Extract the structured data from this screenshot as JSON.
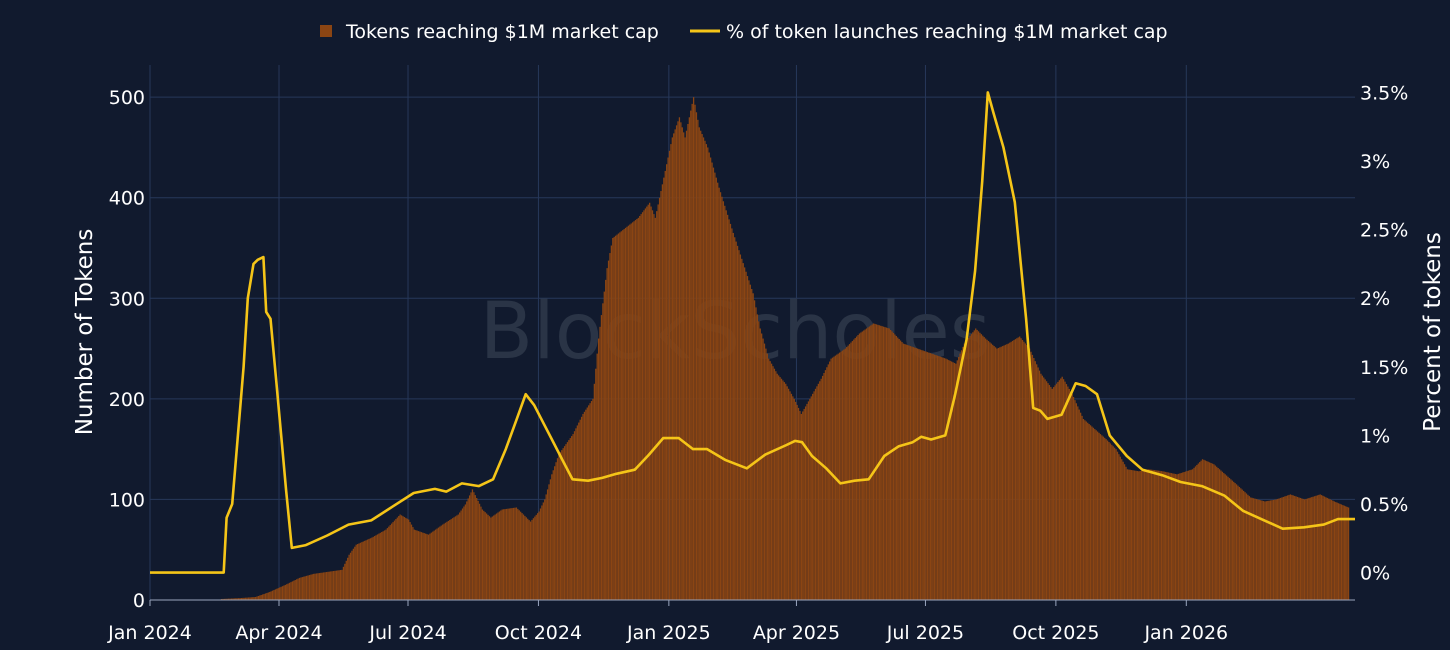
{
  "watermark": "BlockScholes",
  "chart_data": {
    "type": "bar+line",
    "legend_position": "top-center",
    "grid": true,
    "x_range": [
      "2024-01-01",
      "2026-04-30"
    ],
    "x_ticks": [
      {
        "date": "2024-01-01",
        "label": "Jan 2024"
      },
      {
        "date": "2024-04-01",
        "label": "Apr 2024"
      },
      {
        "date": "2024-07-01",
        "label": "Jul 2024"
      },
      {
        "date": "2024-10-01",
        "label": "Oct 2024"
      },
      {
        "date": "2025-01-01",
        "label": "Jan 2025"
      },
      {
        "date": "2025-04-01",
        "label": "Apr 2025"
      },
      {
        "date": "2025-07-01",
        "label": "Jul 2025"
      },
      {
        "date": "2025-10-01",
        "label": "Oct 2025"
      },
      {
        "date": "2026-01-01",
        "label": "Jan 2026"
      }
    ],
    "y_left": {
      "label": "Number of Tokens",
      "range": [
        0,
        532
      ],
      "ticks": [
        {
          "v": 0,
          "label": "0"
        },
        {
          "v": 100,
          "label": "100"
        },
        {
          "v": 200,
          "label": "200"
        },
        {
          "v": 300,
          "label": "300"
        },
        {
          "v": 400,
          "label": "400"
        },
        {
          "v": 500,
          "label": "500"
        }
      ]
    },
    "y_right": {
      "label": "Percent of tokens",
      "range": [
        -0.2,
        3.7
      ],
      "ticks": [
        {
          "v": 0,
          "label": "0%"
        },
        {
          "v": 0.5,
          "label": "0.5%"
        },
        {
          "v": 1,
          "label": "1%"
        },
        {
          "v": 1.5,
          "label": "1.5%"
        },
        {
          "v": 2,
          "label": "2%"
        },
        {
          "v": 2.5,
          "label": "2.5%"
        },
        {
          "v": 3,
          "label": "3%"
        },
        {
          "v": 3.5,
          "label": "3.5%"
        }
      ]
    },
    "series": [
      {
        "name": "Tokens reaching $1M market cap",
        "kind": "bar",
        "axis": "left",
        "color": "#8b4513",
        "points": [
          [
            "2024-02-20",
            1
          ],
          [
            "2024-03-05",
            2
          ],
          [
            "2024-03-15",
            3
          ],
          [
            "2024-03-25",
            8
          ],
          [
            "2024-04-05",
            15
          ],
          [
            "2024-04-15",
            22
          ],
          [
            "2024-04-25",
            26
          ],
          [
            "2024-05-05",
            28
          ],
          [
            "2024-05-15",
            30
          ],
          [
            "2024-05-20",
            45
          ],
          [
            "2024-05-25",
            55
          ],
          [
            "2024-06-05",
            62
          ],
          [
            "2024-06-15",
            70
          ],
          [
            "2024-06-25",
            85
          ],
          [
            "2024-07-01",
            80
          ],
          [
            "2024-07-05",
            70
          ],
          [
            "2024-07-15",
            65
          ],
          [
            "2024-07-25",
            75
          ],
          [
            "2024-08-05",
            85
          ],
          [
            "2024-08-10",
            95
          ],
          [
            "2024-08-15",
            110
          ],
          [
            "2024-08-22",
            90
          ],
          [
            "2024-08-28",
            82
          ],
          [
            "2024-09-05",
            90
          ],
          [
            "2024-09-15",
            92
          ],
          [
            "2024-09-25",
            78
          ],
          [
            "2024-10-01",
            88
          ],
          [
            "2024-10-05",
            100
          ],
          [
            "2024-10-10",
            125
          ],
          [
            "2024-10-15",
            145
          ],
          [
            "2024-10-25",
            165
          ],
          [
            "2024-11-01",
            185
          ],
          [
            "2024-11-08",
            200
          ],
          [
            "2024-11-12",
            260
          ],
          [
            "2024-11-18",
            330
          ],
          [
            "2024-11-22",
            360
          ],
          [
            "2024-12-01",
            370
          ],
          [
            "2024-12-10",
            380
          ],
          [
            "2024-12-18",
            395
          ],
          [
            "2024-12-22",
            380
          ],
          [
            "2024-12-28",
            420
          ],
          [
            "2025-01-03",
            460
          ],
          [
            "2025-01-08",
            480
          ],
          [
            "2025-01-12",
            460
          ],
          [
            "2025-01-18",
            500
          ],
          [
            "2025-01-22",
            470
          ],
          [
            "2025-01-28",
            450
          ],
          [
            "2025-02-05",
            410
          ],
          [
            "2025-02-15",
            365
          ],
          [
            "2025-02-22",
            335
          ],
          [
            "2025-03-01",
            305
          ],
          [
            "2025-03-06",
            270
          ],
          [
            "2025-03-12",
            240
          ],
          [
            "2025-03-18",
            225
          ],
          [
            "2025-03-24",
            215
          ],
          [
            "2025-03-30",
            200
          ],
          [
            "2025-04-04",
            185
          ],
          [
            "2025-04-10",
            200
          ],
          [
            "2025-04-18",
            220
          ],
          [
            "2025-04-25",
            240
          ],
          [
            "2025-05-05",
            250
          ],
          [
            "2025-05-15",
            265
          ],
          [
            "2025-05-25",
            275
          ],
          [
            "2025-06-05",
            270
          ],
          [
            "2025-06-15",
            255
          ],
          [
            "2025-06-25",
            250
          ],
          [
            "2025-07-05",
            245
          ],
          [
            "2025-07-15",
            240
          ],
          [
            "2025-07-22",
            235
          ],
          [
            "2025-07-28",
            255
          ],
          [
            "2025-08-05",
            270
          ],
          [
            "2025-08-12",
            260
          ],
          [
            "2025-08-20",
            250
          ],
          [
            "2025-08-28",
            255
          ],
          [
            "2025-09-05",
            262
          ],
          [
            "2025-09-12",
            250
          ],
          [
            "2025-09-20",
            225
          ],
          [
            "2025-09-28",
            210
          ],
          [
            "2025-10-05",
            222
          ],
          [
            "2025-10-12",
            205
          ],
          [
            "2025-10-20",
            180
          ],
          [
            "2025-10-28",
            170
          ],
          [
            "2025-11-05",
            160
          ],
          [
            "2025-11-12",
            150
          ],
          [
            "2025-11-20",
            130
          ],
          [
            "2025-11-28",
            128
          ],
          [
            "2025-12-05",
            130
          ],
          [
            "2025-12-15",
            128
          ],
          [
            "2025-12-25",
            125
          ],
          [
            "2026-01-05",
            130
          ],
          [
            "2026-01-12",
            140
          ],
          [
            "2026-01-20",
            135
          ],
          [
            "2026-01-28",
            125
          ],
          [
            "2026-02-05",
            115
          ],
          [
            "2026-02-15",
            102
          ],
          [
            "2026-02-25",
            98
          ],
          [
            "2026-03-05",
            100
          ],
          [
            "2026-03-15",
            105
          ],
          [
            "2026-03-25",
            100
          ],
          [
            "2026-04-05",
            105
          ],
          [
            "2026-04-15",
            98
          ],
          [
            "2026-04-25",
            92
          ]
        ]
      },
      {
        "name": "% of token launches reaching $1M market cap",
        "kind": "line",
        "axis": "right",
        "color": "#f5c518",
        "points": [
          [
            "2024-01-01",
            0
          ],
          [
            "2024-02-22",
            0
          ],
          [
            "2024-02-24",
            0.4
          ],
          [
            "2024-02-28",
            0.5
          ],
          [
            "2024-03-03",
            1
          ],
          [
            "2024-03-07",
            1.5
          ],
          [
            "2024-03-10",
            2
          ],
          [
            "2024-03-14",
            2.25
          ],
          [
            "2024-03-17",
            2.28
          ],
          [
            "2024-03-21",
            2.3
          ],
          [
            "2024-03-23",
            1.9
          ],
          [
            "2024-03-26",
            1.85
          ],
          [
            "2024-03-30",
            1.4
          ],
          [
            "2024-04-03",
            0.95
          ],
          [
            "2024-04-06",
            0.6
          ],
          [
            "2024-04-10",
            0.18
          ],
          [
            "2024-04-20",
            0.2
          ],
          [
            "2024-05-05",
            0.27
          ],
          [
            "2024-05-20",
            0.35
          ],
          [
            "2024-06-05",
            0.38
          ],
          [
            "2024-06-20",
            0.48
          ],
          [
            "2024-07-05",
            0.58
          ],
          [
            "2024-07-20",
            0.61
          ],
          [
            "2024-07-28",
            0.59
          ],
          [
            "2024-08-08",
            0.65
          ],
          [
            "2024-08-20",
            0.63
          ],
          [
            "2024-08-30",
            0.68
          ],
          [
            "2024-09-08",
            0.9
          ],
          [
            "2024-09-15",
            1.1
          ],
          [
            "2024-09-22",
            1.3
          ],
          [
            "2024-09-28",
            1.22
          ],
          [
            "2024-10-04",
            1.1
          ],
          [
            "2024-10-10",
            0.98
          ],
          [
            "2024-10-18",
            0.82
          ],
          [
            "2024-10-25",
            0.68
          ],
          [
            "2024-11-05",
            0.67
          ],
          [
            "2024-11-15",
            0.69
          ],
          [
            "2024-11-25",
            0.72
          ],
          [
            "2024-12-08",
            0.75
          ],
          [
            "2024-12-18",
            0.86
          ],
          [
            "2024-12-28",
            0.98
          ],
          [
            "2025-01-08",
            0.98
          ],
          [
            "2025-01-18",
            0.9
          ],
          [
            "2025-01-28",
            0.9
          ],
          [
            "2025-02-10",
            0.82
          ],
          [
            "2025-02-25",
            0.76
          ],
          [
            "2025-03-10",
            0.86
          ],
          [
            "2025-03-25",
            0.93
          ],
          [
            "2025-03-31",
            0.96
          ],
          [
            "2025-04-05",
            0.95
          ],
          [
            "2025-04-12",
            0.85
          ],
          [
            "2025-04-22",
            0.76
          ],
          [
            "2025-05-02",
            0.65
          ],
          [
            "2025-05-12",
            0.67
          ],
          [
            "2025-05-22",
            0.68
          ],
          [
            "2025-06-02",
            0.85
          ],
          [
            "2025-06-12",
            0.92
          ],
          [
            "2025-06-22",
            0.95
          ],
          [
            "2025-06-28",
            0.99
          ],
          [
            "2025-07-05",
            0.97
          ],
          [
            "2025-07-15",
            1
          ],
          [
            "2025-07-22",
            1.3
          ],
          [
            "2025-07-30",
            1.7
          ],
          [
            "2025-08-05",
            2.2
          ],
          [
            "2025-08-10",
            2.85
          ],
          [
            "2025-08-14",
            3.5
          ],
          [
            "2025-08-18",
            3.35
          ],
          [
            "2025-08-25",
            3.1
          ],
          [
            "2025-09-02",
            2.7
          ],
          [
            "2025-09-10",
            1.85
          ],
          [
            "2025-09-15",
            1.2
          ],
          [
            "2025-09-20",
            1.18
          ],
          [
            "2025-09-25",
            1.12
          ],
          [
            "2025-10-05",
            1.15
          ],
          [
            "2025-10-15",
            1.38
          ],
          [
            "2025-10-22",
            1.36
          ],
          [
            "2025-10-30",
            1.3
          ],
          [
            "2025-11-08",
            1
          ],
          [
            "2025-11-20",
            0.85
          ],
          [
            "2025-12-01",
            0.75
          ],
          [
            "2025-12-15",
            0.71
          ],
          [
            "2025-12-28",
            0.66
          ],
          [
            "2026-01-12",
            0.63
          ],
          [
            "2026-01-28",
            0.56
          ],
          [
            "2026-02-10",
            0.45
          ],
          [
            "2026-02-25",
            0.38
          ],
          [
            "2026-03-10",
            0.32
          ],
          [
            "2026-03-25",
            0.33
          ],
          [
            "2026-04-08",
            0.35
          ],
          [
            "2026-04-18",
            0.39
          ],
          [
            "2026-04-30",
            0.39
          ]
        ]
      }
    ]
  }
}
